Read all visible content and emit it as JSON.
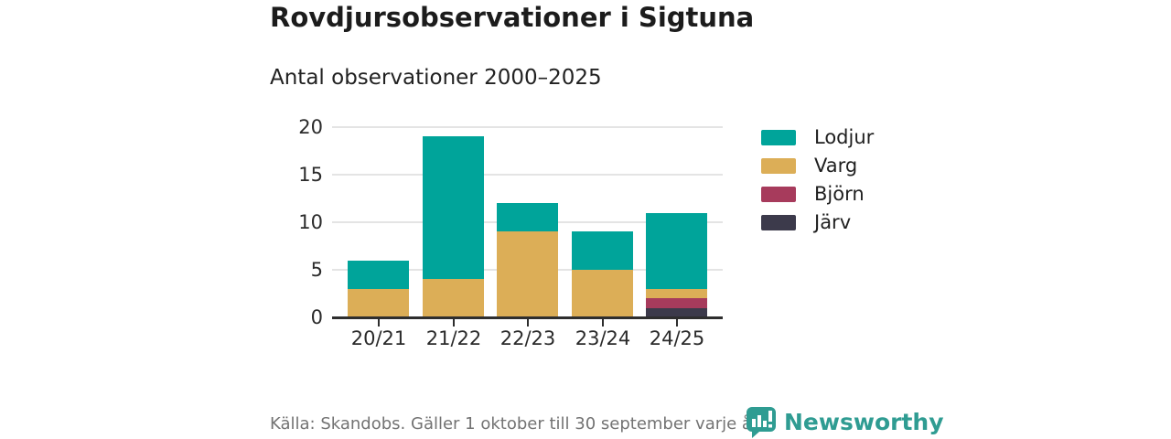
{
  "header": {
    "title": "Rovdjursobservationer i Sigtuna",
    "subtitle": "Antal observationer 2000–2025"
  },
  "chart_data": {
    "type": "bar",
    "stacked": true,
    "title": "Rovdjursobservationer i Sigtuna",
    "subtitle": "Antal observationer 2000–2025",
    "categories": [
      "20/21",
      "21/22",
      "22/23",
      "23/24",
      "24/25"
    ],
    "series": [
      {
        "name": "Lodjur",
        "color": "#00a49a",
        "values": [
          3,
          15,
          3,
          4,
          8
        ]
      },
      {
        "name": "Varg",
        "color": "#dcae57",
        "values": [
          3,
          4,
          9,
          5,
          1
        ]
      },
      {
        "name": "Björn",
        "color": "#a73b5c",
        "values": [
          0,
          0,
          0,
          0,
          1
        ]
      },
      {
        "name": "Järv",
        "color": "#3c3a4b",
        "values": [
          0,
          0,
          0,
          0,
          1
        ]
      }
    ],
    "totals": [
      6,
      19,
      12,
      9,
      11
    ],
    "yticks": [
      0,
      5,
      10,
      15,
      20
    ],
    "ylim": [
      0,
      20
    ],
    "xlabel": "",
    "ylabel": "",
    "grid": "horizontal",
    "legend_position": "right"
  },
  "footer": {
    "source": "Källa: Skandobs. Gäller 1 oktober till 30 september varje år.",
    "brand": "Newsworthy"
  },
  "colors": {
    "lodjur": "#00a49a",
    "varg": "#dcae57",
    "bjorn": "#a73b5c",
    "jarv": "#3c3a4b",
    "brand_teal": "#2f9c92",
    "gridline": "#e4e4e4",
    "axis": "#2e2e2e",
    "muted_text": "#737373"
  }
}
